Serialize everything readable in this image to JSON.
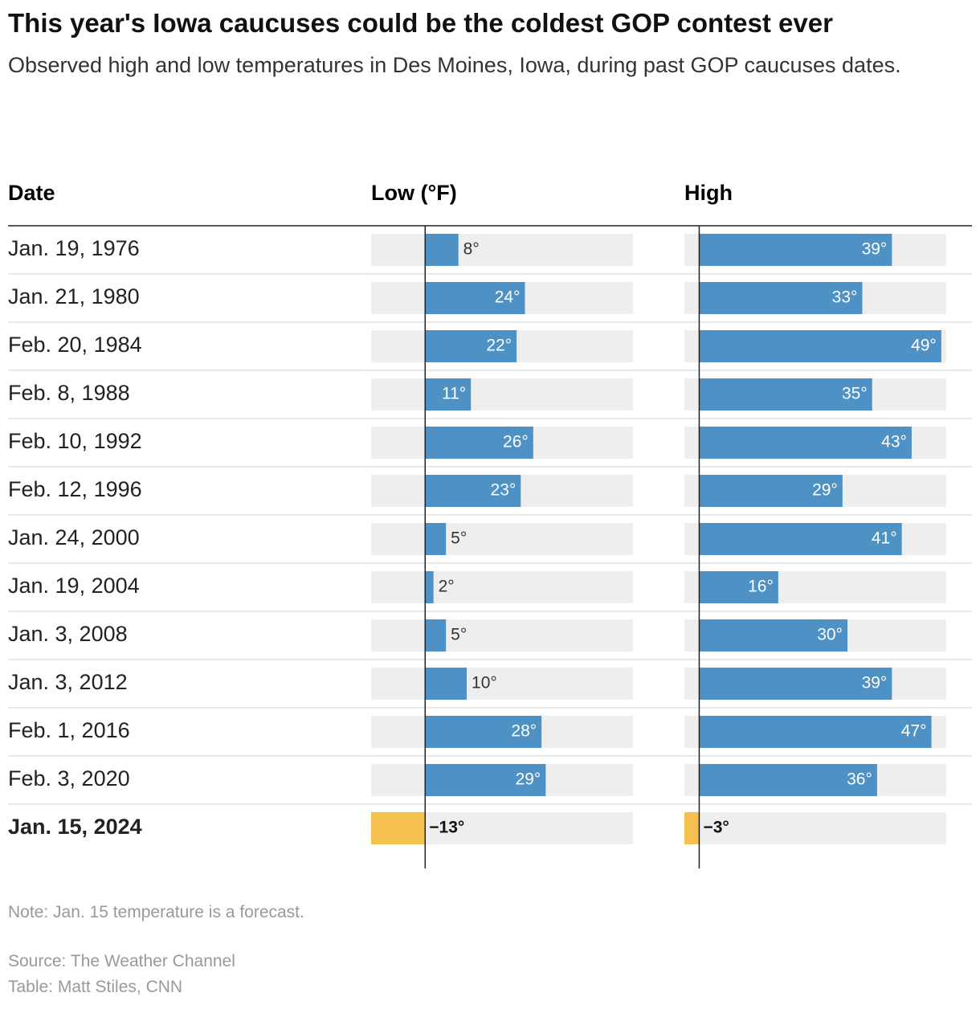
{
  "chart_data": {
    "type": "bar-table",
    "title": "This year's Iowa caucuses could be the coldest GOP contest ever",
    "subtitle": "Observed high and low temperatures in Des Moines, Iowa, during past GOP caucuses dates.",
    "category_header": "Date",
    "categories": [
      "Jan. 19, 1976",
      "Jan. 21, 1980",
      "Feb. 20, 1984",
      "Feb. 8, 1988",
      "Feb. 10, 1992",
      "Feb. 12, 1996",
      "Jan. 24, 2000",
      "Jan. 19, 2004",
      "Jan. 3, 2008",
      "Jan. 3, 2012",
      "Feb. 1, 2016",
      "Feb. 3, 2020",
      "Jan. 15, 2024"
    ],
    "series": [
      {
        "name": "Low (°F)",
        "color": "#4e91c4",
        "xlim": [
          -13,
          50
        ],
        "colors": [
          "#4e91c4",
          "#4e91c4",
          "#4e91c4",
          "#4e91c4",
          "#4e91c4",
          "#4e91c4",
          "#4e91c4",
          "#4e91c4",
          "#4e91c4",
          "#4e91c4",
          "#4e91c4",
          "#4e91c4",
          "#f5c04e"
        ],
        "values": [
          8,
          24,
          22,
          11,
          26,
          23,
          5,
          2,
          5,
          10,
          28,
          29,
          -13
        ],
        "value_labels": [
          "8°",
          "24°",
          "22°",
          "11°",
          "26°",
          "23°",
          "5°",
          "2°",
          "5°",
          "10°",
          "28°",
          "29°",
          "−13°"
        ]
      },
      {
        "name": "High",
        "color": "#4e91c4",
        "xlim": [
          -3,
          50
        ],
        "colors": [
          "#4e91c4",
          "#4e91c4",
          "#4e91c4",
          "#4e91c4",
          "#4e91c4",
          "#4e91c4",
          "#4e91c4",
          "#4e91c4",
          "#4e91c4",
          "#4e91c4",
          "#4e91c4",
          "#4e91c4",
          "#f5c04e"
        ],
        "values": [
          39,
          33,
          49,
          35,
          43,
          29,
          41,
          16,
          30,
          39,
          47,
          36,
          -3
        ],
        "value_labels": [
          "39°",
          "33°",
          "49°",
          "35°",
          "43°",
          "29°",
          "41°",
          "16°",
          "30°",
          "39°",
          "47°",
          "36°",
          "−3°"
        ]
      }
    ],
    "note": "Note: Jan. 15 temperature is a forecast.",
    "source": "Source: The Weather Channel",
    "credit": "Table: Matt Stiles, CNN"
  }
}
